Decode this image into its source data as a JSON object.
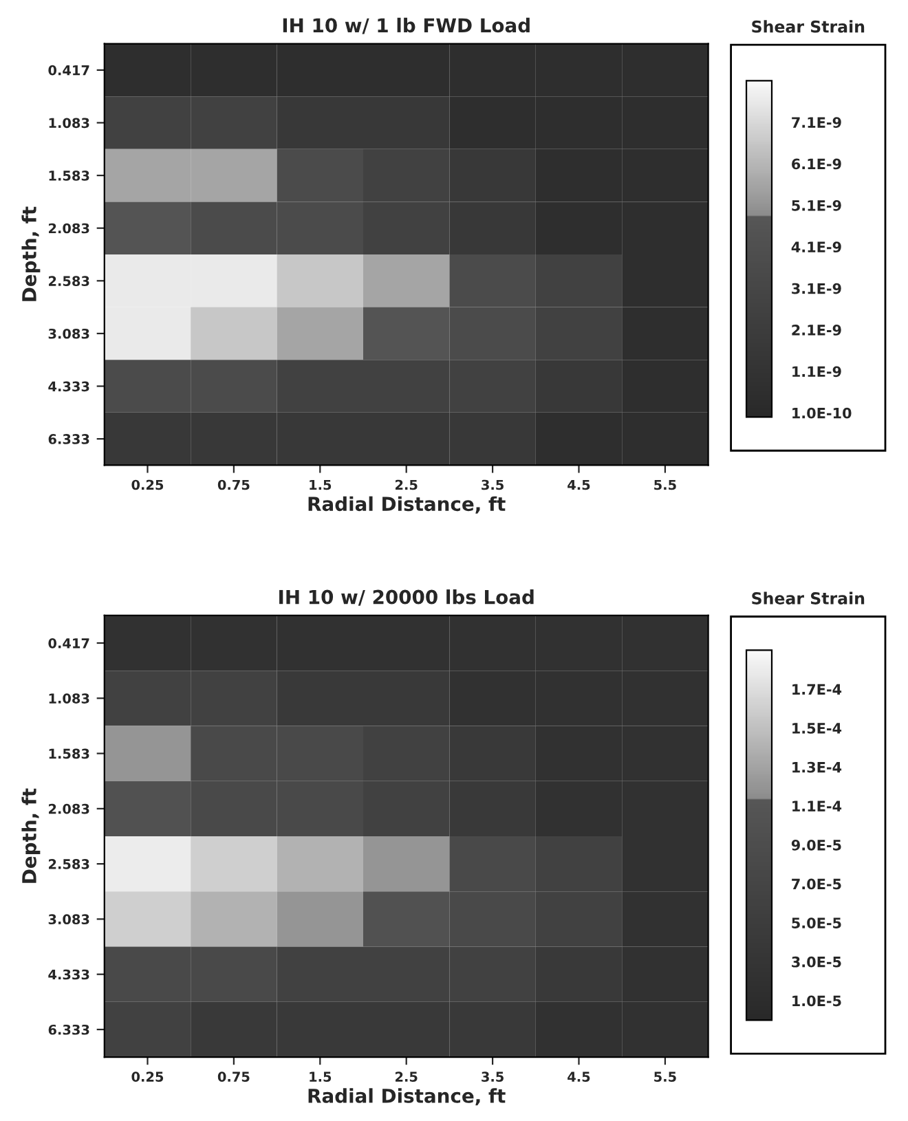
{
  "chart_data": [
    {
      "type": "heatmap",
      "title": "IH 10 w/ 1 lb FWD Load",
      "xlabel": "Radial Distance, ft",
      "ylabel": "Depth, ft",
      "clabel": "Shear Strain",
      "categories": [
        "0.25",
        "0.75",
        "1.5",
        "2.5",
        "3.5",
        "4.5",
        "5.5"
      ],
      "y_categories": [
        "0.417",
        "1.083",
        "1.583",
        "2.083",
        "2.583",
        "3.083",
        "4.333",
        "6.333"
      ],
      "cells": [
        [
          6e-10,
          6e-10,
          6e-10,
          6e-10,
          6e-10,
          6e-10,
          6e-10
        ],
        [
          2.6e-09,
          2.6e-09,
          1.6e-09,
          1.6e-09,
          6e-10,
          6e-10,
          6e-10
        ],
        [
          5.6e-09,
          5.6e-09,
          3.6e-09,
          2.6e-09,
          1.6e-09,
          6e-10,
          6e-10
        ],
        [
          4.6e-09,
          3.6e-09,
          3.6e-09,
          2.6e-09,
          1.6e-09,
          6e-10,
          6e-10
        ],
        [
          7.6e-09,
          7.6e-09,
          6.6e-09,
          5.6e-09,
          3.6e-09,
          2.6e-09,
          6e-10
        ],
        [
          7.6e-09,
          6.6e-09,
          5.6e-09,
          4.6e-09,
          3.6e-09,
          2.6e-09,
          6e-10
        ],
        [
          3.6e-09,
          3.6e-09,
          2.6e-09,
          2.6e-09,
          2.6e-09,
          1.6e-09,
          6e-10
        ],
        [
          1.6e-09,
          1.6e-09,
          1.6e-09,
          1.6e-09,
          1.6e-09,
          6e-10,
          6e-10
        ]
      ],
      "clim": [
        0,
        8.1e-09
      ],
      "cticks": [
        {
          "value": 1e-10,
          "label": "1.0E-10"
        },
        {
          "value": 1.1e-09,
          "label": "1.1E-9"
        },
        {
          "value": 2.1e-09,
          "label": "2.1E-9"
        },
        {
          "value": 3.1e-09,
          "label": "3.1E-9"
        },
        {
          "value": 4.1e-09,
          "label": "4.1E-9"
        },
        {
          "value": 5.1e-09,
          "label": "5.1E-9"
        },
        {
          "value": 6.1e-09,
          "label": "6.1E-9"
        },
        {
          "value": 7.1e-09,
          "label": "7.1E-9"
        }
      ]
    },
    {
      "type": "heatmap",
      "title": "IH 10 w/ 20000 lbs Load",
      "xlabel": "Radial Distance, ft",
      "ylabel": "Depth, ft",
      "clabel": "Shear Strain",
      "categories": [
        "0.25",
        "0.75",
        "1.5",
        "2.5",
        "3.5",
        "4.5",
        "5.5"
      ],
      "y_categories": [
        "0.417",
        "1.083",
        "1.583",
        "2.083",
        "2.583",
        "3.083",
        "4.333",
        "6.333"
      ],
      "cells": [
        [
          2e-05,
          2e-05,
          2e-05,
          2e-05,
          2e-05,
          2e-05,
          2e-05
        ],
        [
          6e-05,
          6e-05,
          4e-05,
          4e-05,
          2e-05,
          2e-05,
          2e-05
        ],
        [
          0.00012,
          8e-05,
          8e-05,
          6e-05,
          4e-05,
          2e-05,
          2e-05
        ],
        [
          0.0001,
          8e-05,
          8e-05,
          6e-05,
          4e-05,
          2e-05,
          2e-05
        ],
        [
          0.00018,
          0.00016,
          0.00014,
          0.00012,
          8e-05,
          6e-05,
          2e-05
        ],
        [
          0.00016,
          0.00014,
          0.00012,
          0.0001,
          8e-05,
          6e-05,
          2e-05
        ],
        [
          8e-05,
          8e-05,
          6e-05,
          6e-05,
          6e-05,
          4e-05,
          2e-05
        ],
        [
          6e-05,
          4e-05,
          4e-05,
          4e-05,
          4e-05,
          2e-05,
          2e-05
        ]
      ],
      "clim": [
        0,
        0.00019
      ],
      "cticks": [
        {
          "value": 1e-05,
          "label": "1.0E-5"
        },
        {
          "value": 3e-05,
          "label": "3.0E-5"
        },
        {
          "value": 5e-05,
          "label": "5.0E-5"
        },
        {
          "value": 7e-05,
          "label": "7.0E-5"
        },
        {
          "value": 9e-05,
          "label": "9.0E-5"
        },
        {
          "value": 0.00011,
          "label": "1.1E-4"
        },
        {
          "value": 0.00013,
          "label": "1.3E-4"
        },
        {
          "value": 0.00015,
          "label": "1.5E-4"
        },
        {
          "value": 0.00017,
          "label": "1.7E-4"
        }
      ]
    }
  ]
}
